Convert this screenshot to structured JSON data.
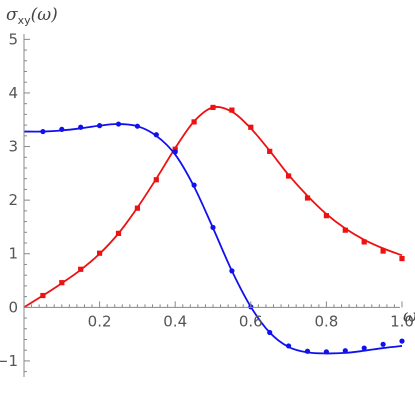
{
  "chart_data": {
    "type": "line",
    "title": "",
    "xlabel": "ω",
    "ylabel": {
      "base": "σ",
      "sub": "xy",
      "arg": "(ω)"
    },
    "xlim": [
      0,
      1.0
    ],
    "ylim": [
      -1.3,
      5.1
    ],
    "xticks": [
      0.2,
      0.4,
      0.6,
      0.8,
      1.0
    ],
    "xtick_labels": [
      "0.2",
      "0.4",
      "0.6",
      "0.8",
      "1.0"
    ],
    "yticks": [
      -1,
      0,
      1,
      2,
      3,
      4,
      5
    ],
    "ytick_labels": [
      "−1",
      "0",
      "1",
      "2",
      "3",
      "4",
      "5"
    ],
    "grid": false,
    "legend": "none",
    "series": [
      {
        "color": "#ee1111",
        "marker": "square",
        "points": {
          "x": [
            0.05,
            0.1,
            0.15,
            0.2,
            0.25,
            0.3,
            0.35,
            0.4,
            0.45,
            0.5,
            0.55,
            0.6,
            0.65,
            0.7,
            0.75,
            0.8,
            0.85,
            0.9,
            0.95,
            1.0
          ],
          "y": [
            0.22,
            0.46,
            0.71,
            1.01,
            1.38,
            1.85,
            2.38,
            2.95,
            3.46,
            3.73,
            3.68,
            3.36,
            2.91,
            2.45,
            2.04,
            1.71,
            1.44,
            1.22,
            1.05,
            0.91
          ]
        },
        "curve": {
          "x": [
            0.0,
            0.05,
            0.1,
            0.15,
            0.2,
            0.25,
            0.3,
            0.35,
            0.4,
            0.45,
            0.5,
            0.55,
            0.6,
            0.65,
            0.7,
            0.75,
            0.8,
            0.85,
            0.9,
            0.95,
            1.0
          ],
          "y": [
            0.0,
            0.22,
            0.45,
            0.7,
            1.0,
            1.38,
            1.86,
            2.4,
            2.97,
            3.47,
            3.73,
            3.65,
            3.34,
            2.92,
            2.47,
            2.08,
            1.74,
            1.47,
            1.26,
            1.1,
            0.97
          ]
        }
      },
      {
        "color": "#1111ee",
        "marker": "circle",
        "points": {
          "x": [
            0.05,
            0.1,
            0.15,
            0.2,
            0.25,
            0.3,
            0.35,
            0.4,
            0.45,
            0.5,
            0.55,
            0.6,
            0.65,
            0.7,
            0.75,
            0.8,
            0.85,
            0.9,
            0.95,
            1.0
          ],
          "y": [
            3.28,
            3.32,
            3.36,
            3.39,
            3.42,
            3.38,
            3.22,
            2.9,
            2.28,
            1.49,
            0.68,
            0.01,
            -0.47,
            -0.72,
            -0.82,
            -0.83,
            -0.81,
            -0.76,
            -0.69,
            -0.63
          ]
        },
        "curve": {
          "x": [
            0.0,
            0.05,
            0.1,
            0.15,
            0.2,
            0.25,
            0.3,
            0.35,
            0.4,
            0.45,
            0.5,
            0.55,
            0.6,
            0.65,
            0.7,
            0.75,
            0.8,
            0.85,
            0.9,
            0.95,
            1.0
          ],
          "y": [
            3.28,
            3.28,
            3.3,
            3.34,
            3.39,
            3.42,
            3.38,
            3.2,
            2.85,
            2.25,
            1.48,
            0.68,
            0.01,
            -0.47,
            -0.74,
            -0.84,
            -0.86,
            -0.85,
            -0.81,
            -0.76,
            -0.72
          ]
        }
      }
    ]
  }
}
